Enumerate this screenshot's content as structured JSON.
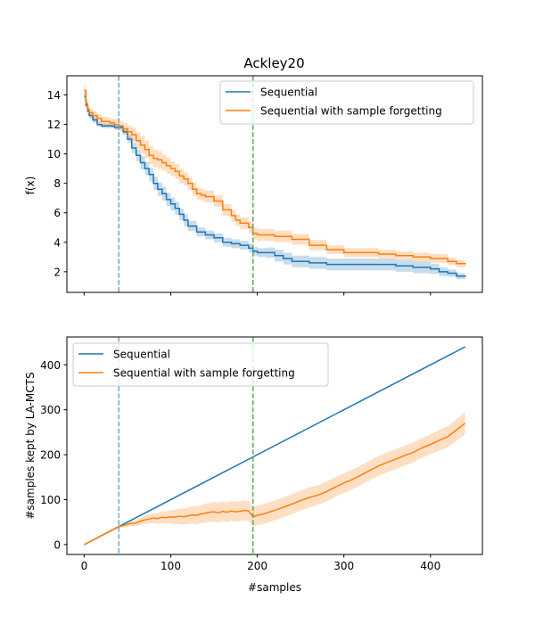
{
  "colors": {
    "sequential": "#1f77b4",
    "forgetting": "#ff7f0e",
    "vline_blue": "#6aa8d8",
    "vline_green": "#54b054"
  },
  "chart_data": [
    {
      "type": "line",
      "title": "Ackley20",
      "xlabel": "",
      "ylabel": "f(x)",
      "xlim": [
        -20,
        460
      ],
      "ylim": [
        0.6,
        15.3
      ],
      "xticks": [
        0,
        100,
        200,
        300,
        400
      ],
      "yticks": [
        2,
        4,
        6,
        8,
        10,
        12,
        14
      ],
      "ytick_labels": [
        "2",
        "4",
        "6",
        "8",
        "10",
        "12",
        "14"
      ],
      "show_xtick_labels": false,
      "legend_position": "top-right",
      "vlines": [
        {
          "x": 40,
          "color": "blue",
          "style": "dashed"
        },
        {
          "x": 195,
          "color": "green",
          "style": "dashed"
        }
      ],
      "series": [
        {
          "name": "Sequential",
          "step": true,
          "x": [
            0,
            2,
            4,
            6,
            10,
            15,
            20,
            25,
            30,
            35,
            40,
            45,
            50,
            55,
            60,
            65,
            70,
            75,
            80,
            85,
            90,
            95,
            100,
            105,
            110,
            115,
            120,
            130,
            140,
            150,
            160,
            170,
            180,
            190,
            195,
            200,
            210,
            220,
            230,
            240,
            260,
            280,
            300,
            320,
            340,
            360,
            380,
            400,
            410,
            420,
            430,
            440
          ],
          "y": [
            13.9,
            13.3,
            12.9,
            12.6,
            12.3,
            12.0,
            11.9,
            11.9,
            11.9,
            11.8,
            11.8,
            11.5,
            11.0,
            10.4,
            9.9,
            9.4,
            9.0,
            8.6,
            8.0,
            7.6,
            7.3,
            6.9,
            6.6,
            6.3,
            5.9,
            5.5,
            5.1,
            4.7,
            4.5,
            4.3,
            4.0,
            3.9,
            3.8,
            3.6,
            3.4,
            3.3,
            3.3,
            3.1,
            2.9,
            2.7,
            2.6,
            2.5,
            2.5,
            2.5,
            2.5,
            2.4,
            2.3,
            2.2,
            2.0,
            1.9,
            1.7,
            1.65
          ],
          "band": [
            0.3,
            0.3,
            0.3,
            0.2,
            0.2,
            0.15,
            0.15,
            0.15,
            0.15,
            0.15,
            0.15,
            0.2,
            0.25,
            0.35,
            0.4,
            0.45,
            0.45,
            0.45,
            0.45,
            0.45,
            0.45,
            0.45,
            0.45,
            0.45,
            0.4,
            0.4,
            0.35,
            0.3,
            0.3,
            0.3,
            0.3,
            0.3,
            0.3,
            0.3,
            0.3,
            0.3,
            0.35,
            0.4,
            0.4,
            0.4,
            0.4,
            0.4,
            0.4,
            0.4,
            0.4,
            0.4,
            0.4,
            0.35,
            0.3,
            0.25,
            0.2,
            0.2
          ]
        },
        {
          "name": "Sequential with sample forgetting",
          "step": true,
          "x": [
            0,
            2,
            4,
            6,
            10,
            15,
            20,
            25,
            30,
            35,
            40,
            45,
            50,
            55,
            60,
            65,
            70,
            75,
            80,
            85,
            90,
            95,
            100,
            105,
            110,
            115,
            120,
            125,
            130,
            135,
            140,
            150,
            160,
            170,
            175,
            180,
            190,
            195,
            200,
            220,
            240,
            260,
            280,
            300,
            320,
            340,
            360,
            380,
            400,
            420,
            430,
            440
          ],
          "y": [
            14.3,
            13.4,
            13.0,
            12.8,
            12.6,
            12.4,
            12.2,
            12.2,
            12.1,
            12.0,
            11.9,
            11.7,
            11.5,
            11.3,
            10.9,
            10.6,
            10.3,
            9.9,
            9.7,
            9.6,
            9.4,
            9.2,
            9.0,
            8.8,
            8.5,
            8.3,
            8.0,
            7.6,
            7.3,
            7.2,
            7.1,
            6.8,
            6.2,
            5.8,
            5.5,
            5.3,
            5.0,
            4.6,
            4.5,
            4.4,
            4.2,
            3.8,
            3.5,
            3.3,
            3.3,
            3.2,
            3.1,
            3.0,
            2.9,
            2.7,
            2.55,
            2.5
          ],
          "band": [
            0.3,
            0.3,
            0.3,
            0.3,
            0.3,
            0.3,
            0.3,
            0.3,
            0.3,
            0.35,
            0.35,
            0.4,
            0.45,
            0.5,
            0.55,
            0.6,
            0.6,
            0.6,
            0.6,
            0.6,
            0.55,
            0.55,
            0.5,
            0.5,
            0.5,
            0.45,
            0.45,
            0.45,
            0.4,
            0.4,
            0.4,
            0.4,
            0.4,
            0.4,
            0.4,
            0.4,
            0.4,
            0.4,
            0.4,
            0.4,
            0.35,
            0.35,
            0.3,
            0.3,
            0.3,
            0.3,
            0.3,
            0.3,
            0.3,
            0.25,
            0.25,
            0.2
          ]
        }
      ]
    },
    {
      "type": "line",
      "title": "",
      "xlabel": "#samples",
      "ylabel": "#samples kept by LA-MCTS",
      "xlim": [
        -20,
        460
      ],
      "ylim": [
        -22,
        462
      ],
      "xticks": [
        0,
        100,
        200,
        300,
        400
      ],
      "xtick_labels": [
        "0",
        "100",
        "200",
        "300",
        "400"
      ],
      "yticks": [
        0,
        100,
        200,
        300,
        400
      ],
      "ytick_labels": [
        "0",
        "100",
        "200",
        "300",
        "400"
      ],
      "show_xtick_labels": true,
      "legend_position": "top-left",
      "vlines": [
        {
          "x": 40,
          "color": "blue",
          "style": "dashed"
        },
        {
          "x": 195,
          "color": "green",
          "style": "dashed"
        }
      ],
      "series": [
        {
          "name": "Sequential",
          "step": false,
          "x": [
            0,
            440
          ],
          "y": [
            0,
            440
          ]
        },
        {
          "name": "Sequential with sample forgetting",
          "step": false,
          "x": [
            0,
            10,
            20,
            30,
            40,
            45,
            50,
            55,
            60,
            65,
            70,
            75,
            80,
            85,
            90,
            95,
            100,
            105,
            110,
            115,
            120,
            125,
            130,
            135,
            140,
            145,
            150,
            155,
            160,
            165,
            170,
            175,
            180,
            185,
            190,
            195,
            200,
            205,
            210,
            220,
            230,
            240,
            250,
            260,
            270,
            280,
            290,
            300,
            310,
            320,
            330,
            340,
            350,
            360,
            370,
            380,
            390,
            400,
            410,
            420,
            430,
            440
          ],
          "y": [
            0,
            10,
            20,
            30,
            40,
            42,
            45,
            47,
            48,
            52,
            55,
            57,
            59,
            58,
            61,
            60,
            62,
            61,
            63,
            62,
            64,
            66,
            65,
            68,
            70,
            72,
            73,
            71,
            74,
            72,
            75,
            73,
            74,
            76,
            75,
            62,
            65,
            67,
            70,
            76,
            83,
            90,
            98,
            105,
            110,
            118,
            128,
            137,
            145,
            155,
            165,
            175,
            183,
            190,
            198,
            205,
            215,
            223,
            232,
            240,
            255,
            270
          ],
          "band": [
            0,
            1,
            2,
            3,
            3,
            4,
            5,
            6,
            7,
            8,
            9,
            10,
            11,
            12,
            13,
            14,
            15,
            16,
            17,
            18,
            18,
            19,
            20,
            20,
            21,
            21,
            22,
            22,
            22,
            22,
            22,
            22,
            22,
            22,
            22,
            22,
            22,
            22,
            22,
            22,
            22,
            22,
            22,
            22,
            22,
            22,
            22,
            22,
            22,
            22,
            22,
            22,
            22,
            22,
            22,
            22,
            22,
            22,
            23,
            24,
            24,
            25
          ]
        }
      ]
    }
  ]
}
